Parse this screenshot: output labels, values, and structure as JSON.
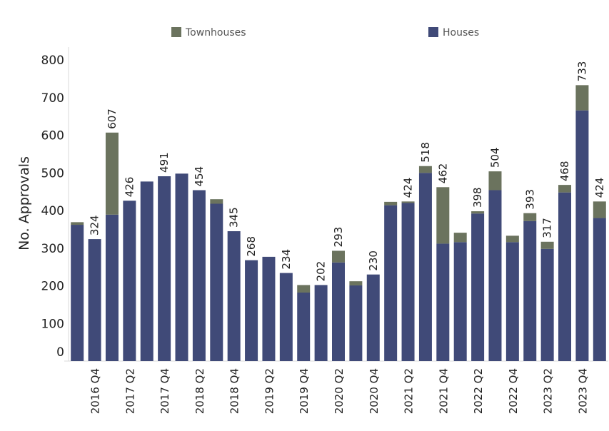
{
  "chart_data": {
    "type": "bar",
    "stacked": true,
    "ylabel": "No. Approvals",
    "xlabel": "",
    "ylim": [
      0,
      800
    ],
    "yticks": [
      0,
      100,
      200,
      300,
      400,
      500,
      600,
      700,
      800
    ],
    "grid": false,
    "legend_position": "top",
    "categories": [
      "2016 Q3",
      "2016 Q4",
      "2017 Q1",
      "2017 Q2",
      "2017 Q3",
      "2017 Q4",
      "2018 Q1",
      "2018 Q2",
      "2018 Q3",
      "2018 Q4",
      "2019 Q1",
      "2019 Q2",
      "2019 Q3",
      "2019 Q4",
      "2020 Q1",
      "2020 Q2",
      "2020 Q3",
      "2020 Q4",
      "2021 Q1",
      "2021 Q2",
      "2021 Q3",
      "2021 Q4",
      "2022 Q1",
      "2022 Q2",
      "2022 Q3",
      "2022 Q4",
      "2023 Q1",
      "2023 Q2",
      "2023 Q3",
      "2023 Q4",
      "2024 Q1"
    ],
    "tick_labels_shown": [
      "",
      "2016 Q4",
      "",
      "2017 Q2",
      "",
      "2017 Q4",
      "",
      "2018 Q2",
      "",
      "2018 Q4",
      "",
      "2019 Q2",
      "",
      "2019 Q4",
      "",
      "2020 Q2",
      "",
      "2020 Q4",
      "",
      "2021 Q2",
      "",
      "2021 Q4",
      "",
      "2022 Q2",
      "",
      "2022 Q4",
      "",
      "2023 Q2",
      "",
      "2023 Q4",
      ""
    ],
    "series": [
      {
        "name": "Houses",
        "color": "#404a78",
        "values": [
          362,
          324,
          389,
          426,
          477,
          491,
          498,
          454,
          418,
          345,
          268,
          277,
          234,
          182,
          202,
          262,
          201,
          230,
          414,
          420,
          500,
          312,
          316,
          392,
          454,
          316,
          372,
          298,
          448,
          666,
          380
        ]
      },
      {
        "name": "Townhouses",
        "color": "#6b735e",
        "values": [
          7,
          0,
          218,
          0,
          0,
          0,
          0,
          0,
          12,
          0,
          0,
          0,
          0,
          20,
          0,
          31,
          11,
          0,
          9,
          4,
          18,
          150,
          25,
          6,
          50,
          17,
          21,
          19,
          20,
          67,
          44
        ]
      }
    ],
    "data_labels": [
      "",
      "324",
      "607",
      "426",
      "",
      "491",
      "",
      "454",
      "",
      "345",
      "268",
      "",
      "234",
      "",
      "202",
      "293",
      "",
      "230",
      "",
      "424",
      "518",
      "462",
      "",
      "398",
      "504",
      "",
      "393",
      "317",
      "468",
      "733",
      "424"
    ]
  }
}
